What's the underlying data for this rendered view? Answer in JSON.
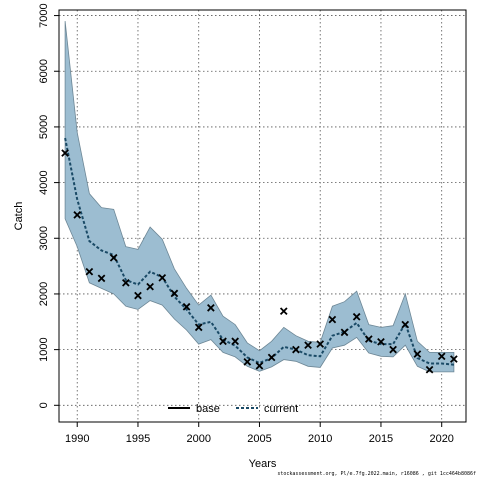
{
  "chart_data": {
    "type": "line",
    "xlabel": "Years",
    "ylabel": "Catch",
    "xlim": [
      1988.5,
      2022
    ],
    "ylim": [
      -300,
      7100
    ],
    "x_ticks": [
      1990,
      1995,
      2000,
      2005,
      2010,
      2015,
      2020
    ],
    "y_ticks": [
      0,
      1000,
      2000,
      3000,
      4000,
      5000,
      6000,
      7000
    ],
    "grid": true,
    "legend_position": "bottom-center",
    "colors": {
      "band": "#9cbdd1",
      "band_edge": "#6d8796",
      "current": "#1a4a66",
      "base": "#000000",
      "grid": "#555555"
    },
    "years": [
      1989,
      1990,
      1991,
      1992,
      1993,
      1994,
      1995,
      1996,
      1997,
      1998,
      1999,
      2000,
      2001,
      2002,
      2003,
      2004,
      2005,
      2006,
      2007,
      2008,
      2009,
      2010,
      2011,
      2012,
      2013,
      2014,
      2015,
      2016,
      2017,
      2018,
      2019,
      2020,
      2021
    ],
    "series": [
      {
        "name": "base",
        "style": "solid",
        "values": []
      },
      {
        "name": "current",
        "style": "dashed",
        "values": [
          4800,
          3700,
          2950,
          2780,
          2700,
          2250,
          2170,
          2400,
          2300,
          1950,
          1720,
          1450,
          1500,
          1180,
          1070,
          860,
          760,
          850,
          1050,
          1000,
          900,
          880,
          1250,
          1320,
          1480,
          1160,
          1100,
          1100,
          1470,
          850,
          750,
          750,
          730
        ]
      }
    ],
    "band_upper": [
      6900,
      4900,
      3800,
      3550,
      3520,
      2850,
      2800,
      3200,
      2980,
      2450,
      2100,
      1800,
      1980,
      1600,
      1450,
      1120,
      980,
      1150,
      1400,
      1250,
      1150,
      1130,
      1780,
      1860,
      2050,
      1450,
      1400,
      1430,
      2000,
      1150,
      950,
      950,
      950
    ],
    "band_lower": [
      3350,
      2850,
      2200,
      2100,
      2000,
      1780,
      1720,
      1880,
      1800,
      1550,
      1350,
      1100,
      1180,
      950,
      870,
      700,
      610,
      690,
      820,
      790,
      700,
      680,
      1030,
      1080,
      1220,
      940,
      880,
      870,
      1080,
      700,
      600,
      600,
      600
    ],
    "observed": [
      4530,
      3420,
      2400,
      2280,
      2650,
      2200,
      1970,
      2130,
      2290,
      2010,
      1770,
      1400,
      1750,
      1150,
      1150,
      780,
      710,
      860,
      1690,
      1000,
      1080,
      1100,
      1540,
      1310,
      1590,
      1190,
      1140,
      1000,
      1450,
      920,
      640,
      880,
      830
    ]
  },
  "footer_text": "stockassessment.org, Pl/e.7fg.2022.main, r16086 , git 1cc464b8086f"
}
